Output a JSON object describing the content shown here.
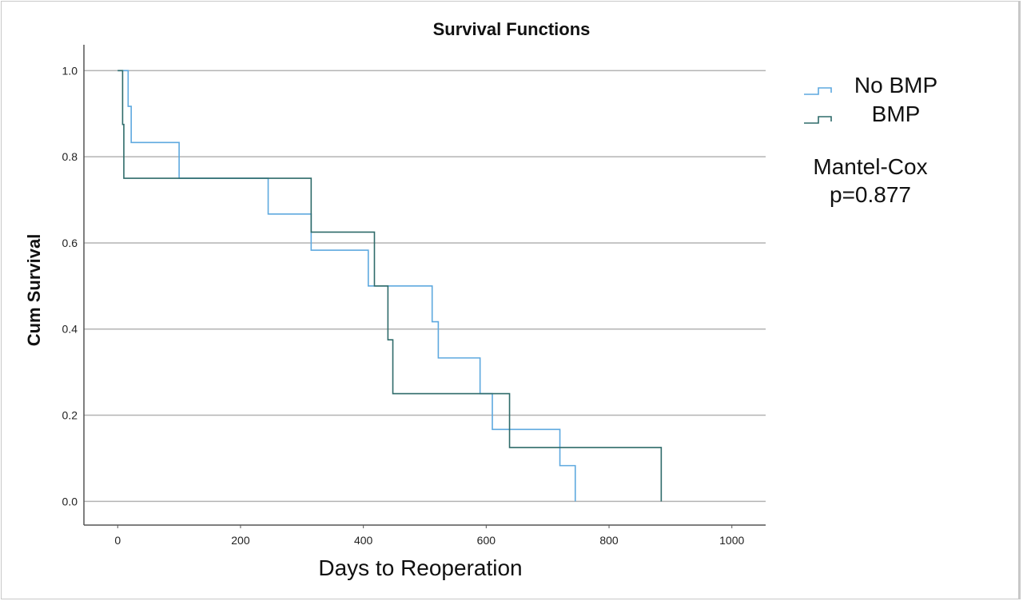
{
  "chart_data": {
    "type": "line",
    "subtype": "kaplan-meier step",
    "title": "Survival Functions",
    "xlabel": "Days to Reoperation",
    "ylabel": "Cum Survival",
    "xlim": [
      -55,
      1055
    ],
    "ylim": [
      -0.055,
      1.06
    ],
    "xticks": [
      0,
      200,
      400,
      600,
      800,
      1000
    ],
    "xtick_labels": [
      "0",
      "200",
      "400",
      "600",
      "800",
      "1000"
    ],
    "yticks": [
      0.0,
      0.2,
      0.4,
      0.6,
      0.8,
      1.0
    ],
    "ytick_labels": [
      "0.0",
      "0.2",
      "0.4",
      "0.6",
      "0.8",
      "1.0"
    ],
    "grid": "horizontal",
    "legend_position": "top-right",
    "series": [
      {
        "name": "No BMP",
        "color": "#5ea9df",
        "x": [
          0,
          17,
          22,
          100,
          245,
          315,
          408,
          512,
          522,
          590,
          610,
          720,
          745
        ],
        "y": [
          1.0,
          0.917,
          0.833,
          0.75,
          0.667,
          0.583,
          0.5,
          0.417,
          0.333,
          0.25,
          0.167,
          0.083,
          0.0
        ]
      },
      {
        "name": "BMP",
        "color": "#2f6b6a",
        "x": [
          0,
          8,
          10,
          315,
          418,
          440,
          448,
          638,
          885
        ],
        "y": [
          1.0,
          0.875,
          0.75,
          0.625,
          0.5,
          0.375,
          0.25,
          0.125,
          0.0
        ]
      }
    ],
    "annotations": [
      "Mantel-Cox",
      "p=0.877"
    ]
  }
}
